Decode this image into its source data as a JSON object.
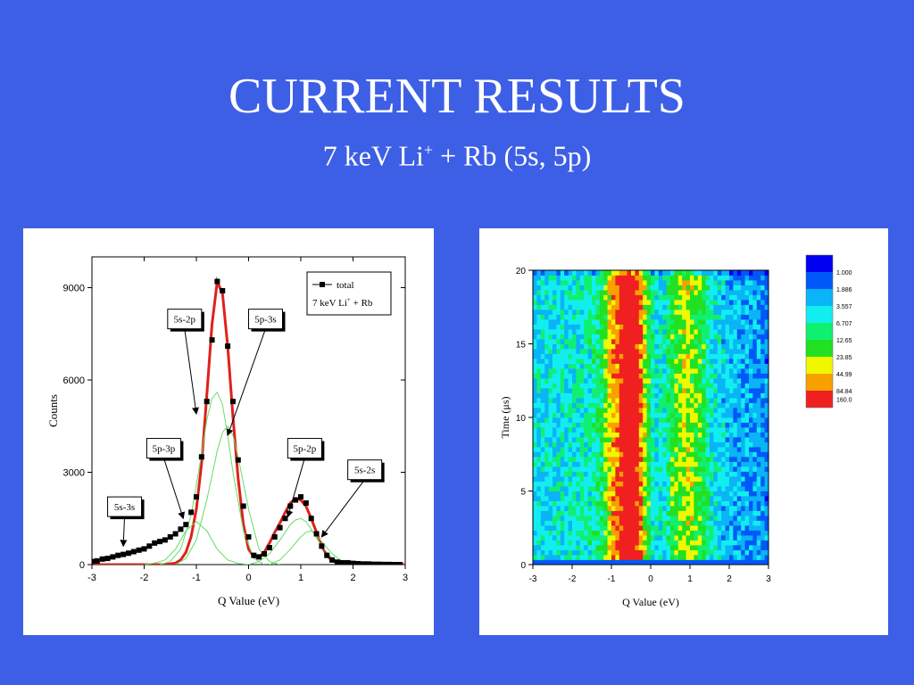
{
  "slide": {
    "title": "CURRENT RESULTS",
    "subtitle_prefix": "7 keV Li",
    "subtitle_sup": "+",
    "subtitle_suffix": " + Rb (5s, 5p)"
  },
  "chart_data": [
    {
      "type": "scatter",
      "xlabel": "Q Value (eV)",
      "ylabel": "Counts",
      "xlim": [
        -3,
        3
      ],
      "ylim": [
        0,
        10000
      ],
      "x_ticks": [
        "-3",
        "-2",
        "-1",
        "0",
        "1",
        "2",
        "3"
      ],
      "y_ticks": [
        "0",
        "3000",
        "6000",
        "9000"
      ],
      "legend": {
        "position": "top-right",
        "symbol_label": "total",
        "note": "7 keV Li",
        "note_sup": "+",
        "note_suffix": " + Rb"
      },
      "series": [
        {
          "name": "total",
          "kind": "points",
          "color": "#000000",
          "x": [
            -3.0,
            -2.9,
            -2.8,
            -2.7,
            -2.6,
            -2.5,
            -2.4,
            -2.3,
            -2.2,
            -2.1,
            -2.0,
            -1.9,
            -1.8,
            -1.7,
            -1.6,
            -1.5,
            -1.4,
            -1.3,
            -1.2,
            -1.1,
            -1.0,
            -0.9,
            -0.8,
            -0.7,
            -0.6,
            -0.5,
            -0.4,
            -0.3,
            -0.2,
            -0.1,
            0.0,
            0.1,
            0.2,
            0.3,
            0.4,
            0.5,
            0.6,
            0.7,
            0.8,
            0.9,
            1.0,
            1.1,
            1.2,
            1.3,
            1.4,
            1.5,
            1.6,
            1.7,
            1.8,
            1.9,
            2.0,
            2.1,
            2.2,
            2.3,
            2.4,
            2.5,
            2.6,
            2.7,
            2.8,
            2.9
          ],
          "y": [
            100,
            120,
            180,
            200,
            250,
            300,
            330,
            370,
            420,
            470,
            510,
            600,
            700,
            750,
            800,
            900,
            1000,
            1150,
            1300,
            1700,
            2200,
            3500,
            5300,
            7300,
            9200,
            8900,
            7100,
            5300,
            3400,
            1900,
            900,
            300,
            250,
            350,
            550,
            900,
            1200,
            1500,
            1900,
            2100,
            2200,
            2000,
            1500,
            1000,
            600,
            300,
            150,
            80,
            60,
            60,
            40,
            30,
            20,
            20,
            10,
            10,
            5,
            5,
            0,
            0
          ]
        },
        {
          "name": "fit total",
          "kind": "line",
          "color": "#e0201c",
          "x": [
            -3,
            -2.8,
            -2.6,
            -2.4,
            -2.2,
            -2.0,
            -1.8,
            -1.6,
            -1.4,
            -1.3,
            -1.2,
            -1.1,
            -1.0,
            -0.9,
            -0.8,
            -0.7,
            -0.6,
            -0.5,
            -0.4,
            -0.3,
            -0.2,
            -0.1,
            0.0,
            0.1,
            0.2,
            0.3,
            0.4,
            0.5,
            0.6,
            0.7,
            0.8,
            0.9,
            1.0,
            1.1,
            1.2,
            1.3,
            1.4,
            1.5,
            1.6,
            1.8,
            2.0,
            2.5,
            3.0
          ],
          "y": [
            0,
            0,
            0,
            0,
            0,
            0,
            0,
            0,
            50,
            150,
            400,
            900,
            1800,
            3300,
            5500,
            7800,
            9200,
            8800,
            7100,
            4800,
            2800,
            1300,
            500,
            250,
            250,
            400,
            700,
            1050,
            1350,
            1700,
            2000,
            2150,
            2100,
            1900,
            1500,
            1050,
            600,
            300,
            120,
            20,
            0,
            0,
            0
          ]
        },
        {
          "name": "5p-3p",
          "kind": "line",
          "color": "#66dd66",
          "x": [
            -2.0,
            -1.8,
            -1.6,
            -1.4,
            -1.2,
            -1.0,
            -0.8,
            -0.6,
            -0.4,
            -0.2,
            0.0
          ],
          "y": [
            0,
            50,
            150,
            500,
            1100,
            1400,
            1100,
            500,
            150,
            40,
            0
          ]
        },
        {
          "name": "5s-2p",
          "kind": "line",
          "color": "#66dd66",
          "x": [
            -1.7,
            -1.5,
            -1.3,
            -1.1,
            -0.9,
            -0.8,
            -0.7,
            -0.6,
            -0.5,
            -0.4,
            -0.3,
            -0.1,
            0.1,
            0.3
          ],
          "y": [
            0,
            100,
            500,
            1600,
            3600,
            4700,
            5400,
            5600,
            5200,
            4200,
            3000,
            1100,
            200,
            0
          ]
        },
        {
          "name": "5p-3s",
          "kind": "line",
          "color": "#66dd66",
          "x": [
            -1.4,
            -1.2,
            -1.0,
            -0.8,
            -0.6,
            -0.5,
            -0.4,
            -0.3,
            -0.2,
            0.0,
            0.2,
            0.4,
            0.6
          ],
          "y": [
            0,
            200,
            800,
            2100,
            3700,
            4300,
            4500,
            4200,
            3500,
            1800,
            500,
            100,
            0
          ]
        },
        {
          "name": "5p-2p",
          "kind": "line",
          "color": "#66dd66",
          "x": [
            0.0,
            0.2,
            0.4,
            0.6,
            0.8,
            0.9,
            1.0,
            1.1,
            1.2,
            1.4,
            1.6,
            1.8
          ],
          "y": [
            0,
            100,
            350,
            800,
            1300,
            1450,
            1500,
            1400,
            1150,
            600,
            200,
            0
          ]
        },
        {
          "name": "5s-2s",
          "kind": "line",
          "color": "#66dd66",
          "x": [
            0.4,
            0.6,
            0.8,
            1.0,
            1.1,
            1.2,
            1.3,
            1.4,
            1.6,
            1.8,
            2.0
          ],
          "y": [
            0,
            150,
            500,
            900,
            1050,
            1100,
            950,
            750,
            350,
            100,
            0
          ]
        }
      ],
      "annotations": [
        {
          "label": "5s-2p",
          "box_xy": [
            -1.55,
            8300
          ],
          "arrow_to": [
            -1.0,
            4900
          ]
        },
        {
          "label": "5p-3s",
          "box_xy": [
            0.0,
            8300
          ],
          "arrow_to": [
            -0.4,
            4200
          ]
        },
        {
          "label": "5p-3p",
          "box_xy": [
            -1.95,
            4100
          ],
          "arrow_to": [
            -1.25,
            1500
          ]
        },
        {
          "label": "5p-2p",
          "box_xy": [
            0.75,
            4100
          ],
          "arrow_to": [
            0.75,
            1550
          ]
        },
        {
          "label": "5s-2s",
          "box_xy": [
            1.9,
            3400
          ],
          "arrow_to": [
            1.4,
            900
          ]
        },
        {
          "label": "5s-3s",
          "box_xy": [
            -2.7,
            2200
          ],
          "arrow_to": [
            -2.4,
            600
          ]
        }
      ]
    },
    {
      "type": "heatmap",
      "xlabel": "Q Value (eV)",
      "ylabel": "Time (μs)",
      "xlim": [
        -3,
        3
      ],
      "ylim": [
        0,
        20
      ],
      "x_ticks": [
        "-3",
        "-2",
        "-1",
        "0",
        "1",
        "2",
        "3"
      ],
      "y_ticks": [
        "0",
        "5",
        "10",
        "15",
        "20"
      ],
      "scale": "log",
      "colorbar": {
        "position": "right",
        "levels": [
          "1.000",
          "1.886",
          "3.557",
          "6.707",
          "12.65",
          "23.85",
          "44.99",
          "84.84",
          "160.0"
        ],
        "colors": [
          "#0000f0",
          "#0058f8",
          "#0ab4f6",
          "#12eef0",
          "#10f070",
          "#22e022",
          "#f0f800",
          "#f8a000",
          "#f02020"
        ]
      },
      "column_profile": {
        "x": [
          -3.0,
          -2.9,
          -2.8,
          -2.7,
          -2.6,
          -2.5,
          -2.4,
          -2.3,
          -2.2,
          -2.1,
          -2.0,
          -1.9,
          -1.8,
          -1.7,
          -1.6,
          -1.5,
          -1.4,
          -1.3,
          -1.2,
          -1.1,
          -1.0,
          -0.9,
          -0.8,
          -0.7,
          -0.6,
          -0.5,
          -0.4,
          -0.3,
          -0.2,
          -0.1,
          0.0,
          0.1,
          0.2,
          0.3,
          0.4,
          0.5,
          0.6,
          0.7,
          0.8,
          0.9,
          1.0,
          1.1,
          1.2,
          1.3,
          1.4,
          1.5,
          1.6,
          1.7,
          1.8,
          1.9,
          2.0,
          2.1,
          2.2,
          2.3,
          2.4,
          2.5,
          2.6,
          2.7,
          2.8,
          2.9
        ],
        "level": [
          2.6,
          2.7,
          2.6,
          2.8,
          2.7,
          2.9,
          2.8,
          3.0,
          2.9,
          3.1,
          3.1,
          3.2,
          3.3,
          3.4,
          3.5,
          3.6,
          3.8,
          4.2,
          5.3,
          6.3,
          6.8,
          7.2,
          8.3,
          8.7,
          8.9,
          8.7,
          8.2,
          7.0,
          5.6,
          4.6,
          3.5,
          2.9,
          3.1,
          3.3,
          3.8,
          4.6,
          5.2,
          5.4,
          5.6,
          5.6,
          5.5,
          5.2,
          5.0,
          4.5,
          3.6,
          3.1,
          2.9,
          2.7,
          2.5,
          2.4,
          2.3,
          2.2,
          2.1,
          2.0,
          1.9,
          1.8,
          1.7,
          1.7,
          1.6,
          1.5
        ]
      }
    }
  ]
}
